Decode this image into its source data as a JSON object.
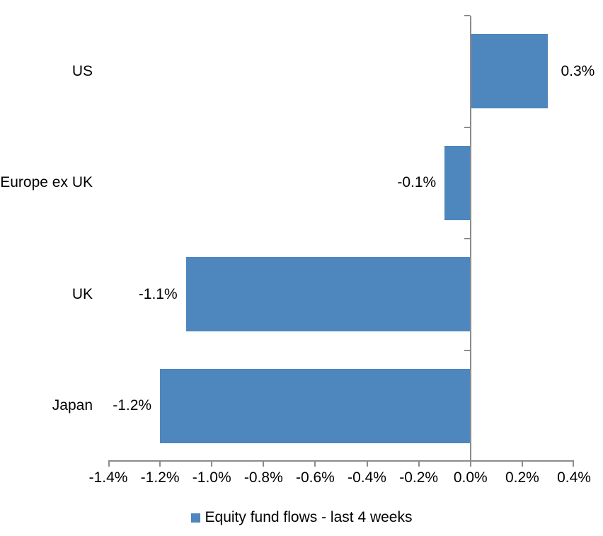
{
  "chart_data": {
    "type": "bar",
    "orientation": "horizontal",
    "title": "",
    "xlabel": "",
    "ylabel": "",
    "categories": [
      "US",
      "Europe ex UK",
      "UK",
      "Japan"
    ],
    "values": [
      0.3,
      -0.1,
      -1.1,
      -1.2
    ],
    "value_labels": [
      "0.3%",
      "-0.1%",
      "-1.1%",
      "-1.2%"
    ],
    "xlim": [
      -1.4,
      0.4
    ],
    "x_tick_values": [
      -1.4,
      -1.2,
      -1.0,
      -0.8,
      -0.6,
      -0.4,
      -0.2,
      0.0,
      0.2,
      0.4
    ],
    "x_tick_labels": [
      "-1.4%",
      "-1.2%",
      "-1.0%",
      "-0.8%",
      "-0.6%",
      "-0.4%",
      "-0.2%",
      "0.0%",
      "0.2%",
      "0.4%"
    ],
    "grid": false,
    "legend_position": "bottom",
    "legend": {
      "label": "Equity fund flows - last 4 weeks"
    },
    "colors": {
      "bar": "#4E86BE",
      "axis": "#8C8C8C",
      "text": "#000000",
      "background": "#FFFFFF"
    }
  }
}
